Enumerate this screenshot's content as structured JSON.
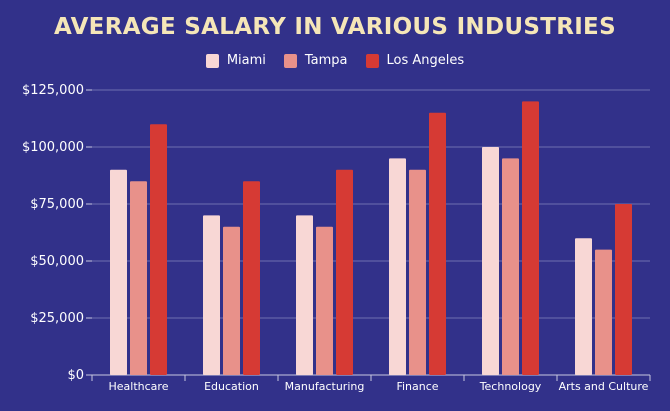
{
  "chart_data": {
    "type": "bar",
    "title": "AVERAGE SALARY IN VARIOUS INDUSTRIES",
    "categories": [
      "Healthcare",
      "Education",
      "Manufacturing",
      "Finance",
      "Technology",
      "Arts and Culture"
    ],
    "series": [
      {
        "name": "Miami",
        "color": "#f8d7d5",
        "values": [
          90000,
          70000,
          70000,
          95000,
          100000,
          60000
        ]
      },
      {
        "name": "Tampa",
        "color": "#e8918a",
        "values": [
          85000,
          65000,
          65000,
          90000,
          95000,
          55000
        ]
      },
      {
        "name": "Los Angeles",
        "color": "#d63a34",
        "values": [
          110000,
          85000,
          90000,
          115000,
          120000,
          75000
        ]
      }
    ],
    "ylim": [
      0,
      125000
    ],
    "yticks": [
      "$0",
      "$25,000",
      "$50,000",
      "$75,000",
      "$100,000",
      "$125,000"
    ],
    "grid": true,
    "legend": "top",
    "colors": {
      "background": "#32318a",
      "title": "#f5e6b8"
    }
  }
}
